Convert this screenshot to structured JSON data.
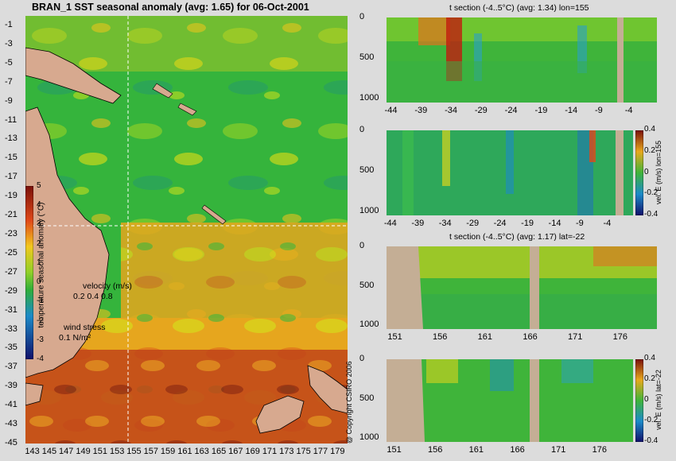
{
  "map": {
    "title": "BRAN_1  SST seasonal anomaly (avg: 1.65) for 06-Oct-2001",
    "colorbar_label": "temperature seasonal anomaly (°C)",
    "colorbar_ticks": [
      "5",
      "4",
      "3",
      "2",
      "1",
      "0",
      "-1",
      "-2",
      "-3",
      "-4"
    ],
    "velocity_legend": "velocity (m/s)",
    "velocity_scale": "0.2 0.4 0.8",
    "wind_legend": "wind stress",
    "wind_scale": "0.1 N/m²",
    "copyright": "@ Copyright CSIRO 2006"
  },
  "panels": [
    {
      "title": "t section (-4..5°C) (avg: 1.34) lon=155",
      "colorbar_label": ""
    },
    {
      "title": "",
      "colorbar_label": "vel. E (m/s) lon=155"
    },
    {
      "title": "t section (-4..5°C) (avg: 1.17) lat=-22",
      "colorbar_label": ""
    },
    {
      "title": "",
      "colorbar_label": "vel. E (m/s) lat=-22"
    }
  ],
  "colors": {
    "land": "#d7a98f",
    "section_land": "#c4ae95",
    "background": "#dcdcdc",
    "ocean_base": "#2fae3a"
  },
  "chart_data": [
    {
      "type": "heatmap",
      "title": "BRAN_1  SST seasonal anomaly (avg: 1.65) for 06-Oct-2001",
      "x_ticks": [
        143,
        145,
        147,
        149,
        151,
        153,
        155,
        157,
        159,
        161,
        163,
        165,
        167,
        169,
        171,
        173,
        175,
        177,
        179
      ],
      "y_ticks": [
        -1,
        -3,
        -5,
        -7,
        -9,
        -11,
        -13,
        -15,
        -17,
        -19,
        -21,
        -23,
        -25,
        -27,
        -29,
        -31,
        -33,
        -35,
        -37,
        -39,
        -41,
        -43,
        -45
      ],
      "xlim": [
        142.4,
        180.4
      ],
      "ylim": [
        -45,
        0
      ],
      "colorbar": {
        "label": "temperature seasonal anomaly (°C)",
        "range": [
          -4,
          5
        ]
      },
      "avg": 1.65,
      "crosshair": {
        "lon": 155,
        "lat": -22
      }
    },
    {
      "type": "heatmap",
      "title": "t section (-4..5°C) (avg: 1.34) lon=155",
      "x_ticks": [
        -44,
        -39,
        -34,
        -29,
        -24,
        -19,
        -14,
        -9,
        -4
      ],
      "y_ticks": [
        0,
        500,
        1000
      ],
      "xlim": [
        -45,
        0
      ],
      "ylim": [
        1050,
        0
      ],
      "avg": 1.34
    },
    {
      "type": "heatmap",
      "title": "",
      "x_ticks": [
        -44,
        -39,
        -34,
        -29,
        -24,
        -19,
        -14,
        -9,
        -4
      ],
      "y_ticks": [
        0,
        500,
        1000
      ],
      "xlim": [
        -45,
        0
      ],
      "ylim": [
        1050,
        0
      ],
      "colorbar": {
        "label": "vel. E (m/s) lon=155",
        "ticks": [
          0.4,
          0.2,
          0,
          -0.2,
          -0.4
        ]
      }
    },
    {
      "type": "heatmap",
      "title": "t section (-4..5°C) (avg: 1.17) lat=-22",
      "x_ticks": [
        151,
        156,
        161,
        166,
        171,
        176
      ],
      "y_ticks": [
        0,
        500,
        1000
      ],
      "xlim": [
        150,
        180
      ],
      "ylim": [
        1050,
        0
      ],
      "avg": 1.17
    },
    {
      "type": "heatmap",
      "title": "",
      "x_ticks": [
        151,
        156,
        161,
        166,
        171,
        176
      ],
      "y_ticks": [
        0,
        500,
        1000
      ],
      "xlim": [
        150,
        180
      ],
      "ylim": [
        1050,
        0
      ],
      "colorbar": {
        "label": "vel. E (m/s) lat=-22",
        "ticks": [
          0.4,
          0.2,
          0,
          -0.2,
          -0.4
        ]
      }
    }
  ]
}
